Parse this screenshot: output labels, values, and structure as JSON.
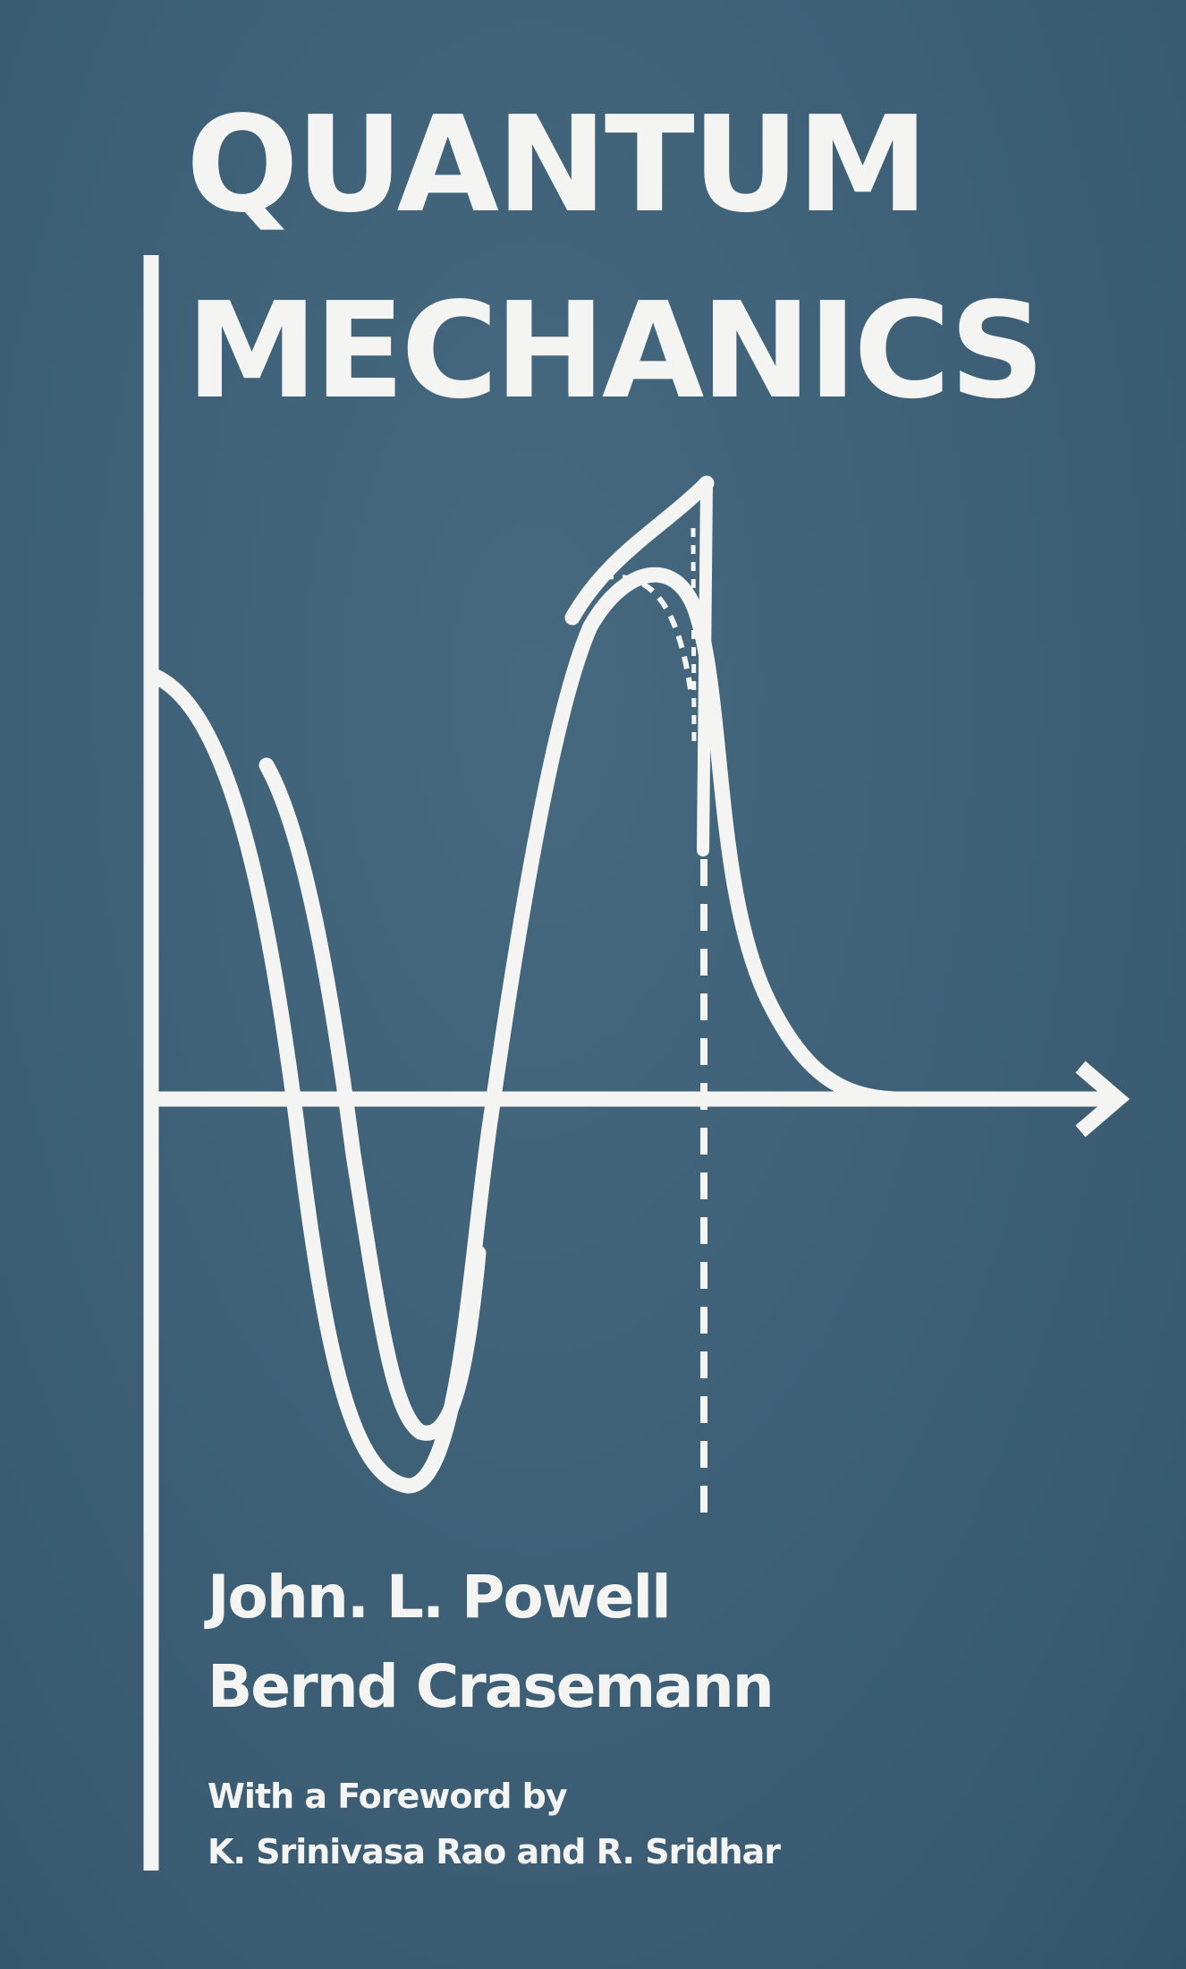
{
  "book": {
    "title_line1": "QUANTUM",
    "title_line2": "MECHANICS",
    "authors": [
      "John. L. Powell",
      "Bernd Crasemann"
    ],
    "foreword_intro": "With a Foreword by",
    "foreword_names": "K. Srinivasa Rao and R. Sridhar"
  },
  "colors": {
    "background": "#3f6178",
    "foreground": "#f4f4f2"
  }
}
